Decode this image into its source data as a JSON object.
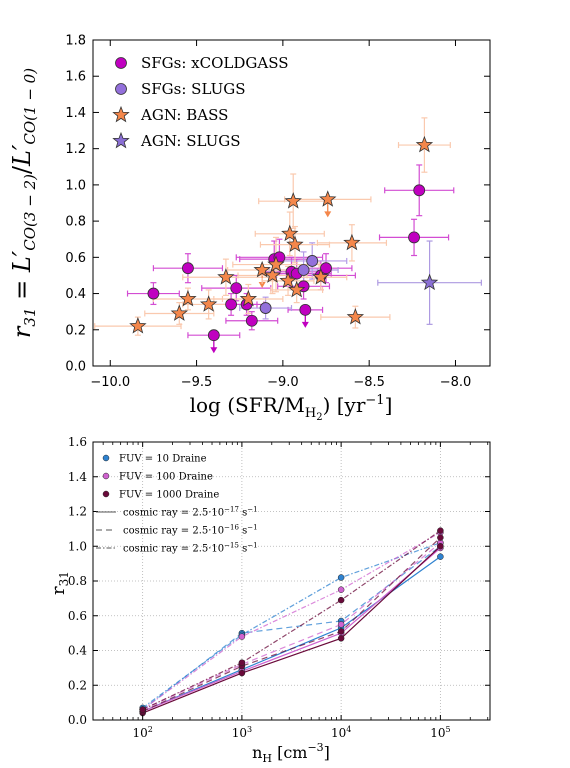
{
  "chart_data": [
    {
      "type": "scatter",
      "xlabel": "log (SFR/M_H2) [yr^-1]",
      "ylabel": "r31 = L'CO(3-2) / L'CO(1-0)",
      "xlim": [
        -10.1,
        -7.8
      ],
      "ylim": [
        0.0,
        1.8
      ],
      "x_ticks": [
        "−10.0",
        "−9.5",
        "−9.0",
        "−8.5",
        "−8.0"
      ],
      "y_ticks": [
        "0.0",
        "0.2",
        "0.4",
        "0.6",
        "0.8",
        "1.0",
        "1.2",
        "1.4",
        "1.6",
        "1.8"
      ],
      "legend_position": "top-left",
      "grid": false,
      "legend": [
        "SFGs: xCOLDGASS",
        "SFGs: SLUGS",
        "AGN: BASS",
        "AGN: SLUGS"
      ],
      "colors": {
        "xcoldgass": "#c000c0",
        "slugs_sfg": "#9370db",
        "bass": "#f4874b",
        "slugs_agn": "#8a6fd4"
      },
      "series": [
        {
          "name": "SFGs: xCOLDGASS",
          "marker": "circle",
          "points": [
            {
              "x": -9.75,
              "y": 0.4,
              "xerr": 0.15,
              "yerr": 0.06
            },
            {
              "x": -9.55,
              "y": 0.54,
              "xerr": 0.2,
              "yerr": 0.08
            },
            {
              "x": -9.4,
              "y": 0.17,
              "xerr": 0.15,
              "yerr": 0.05,
              "upper": true
            },
            {
              "x": -9.3,
              "y": 0.34,
              "xerr": 0.15,
              "yerr": 0.06
            },
            {
              "x": -9.27,
              "y": 0.43,
              "xerr": 0.2,
              "yerr": 0.07
            },
            {
              "x": -9.21,
              "y": 0.34,
              "xerr": 0.1,
              "yerr": 0.06
            },
            {
              "x": -9.18,
              "y": 0.25,
              "xerr": 0.15,
              "yerr": 0.05
            },
            {
              "x": -9.05,
              "y": 0.59,
              "xerr": 0.2,
              "yerr": 0.1
            },
            {
              "x": -9.02,
              "y": 0.6,
              "xerr": 0.25,
              "yerr": 0.1
            },
            {
              "x": -8.95,
              "y": 0.52,
              "xerr": 0.15,
              "yerr": 0.08
            },
            {
              "x": -8.92,
              "y": 0.51,
              "xerr": 0.2,
              "yerr": 0.08
            },
            {
              "x": -8.88,
              "y": 0.44,
              "xerr": 0.15,
              "yerr": 0.07
            },
            {
              "x": -8.87,
              "y": 0.31,
              "xerr": 0.1,
              "yerr": 0.05,
              "upper": true
            },
            {
              "x": -8.78,
              "y": 0.5,
              "xerr": 0.2,
              "yerr": 0.08
            },
            {
              "x": -8.75,
              "y": 0.54,
              "xerr": 0.15,
              "yerr": 0.08
            },
            {
              "x": -8.24,
              "y": 0.71,
              "xerr": 0.2,
              "yerr": 0.1
            },
            {
              "x": -8.21,
              "y": 0.97,
              "xerr": 0.2,
              "yerr": 0.14
            }
          ]
        },
        {
          "name": "SFGs: SLUGS",
          "marker": "circle",
          "points": [
            {
              "x": -9.1,
              "y": 0.32,
              "xerr": 0.15,
              "yerr": 0.06
            },
            {
              "x": -8.88,
              "y": 0.53,
              "xerr": 0.2,
              "yerr": 0.1
            },
            {
              "x": -8.83,
              "y": 0.58,
              "xerr": 0.2,
              "yerr": 0.1
            }
          ]
        },
        {
          "name": "AGN: BASS",
          "marker": "star",
          "points": [
            {
              "x": -9.84,
              "y": 0.22,
              "xerr": 0.25,
              "yerr": 0.05
            },
            {
              "x": -9.6,
              "y": 0.29,
              "xerr": 0.2,
              "yerr": 0.06
            },
            {
              "x": -9.55,
              "y": 0.37,
              "xerr": 0.2,
              "yerr": 0.06
            },
            {
              "x": -9.43,
              "y": 0.34,
              "xerr": 0.15,
              "yerr": 0.08
            },
            {
              "x": -9.33,
              "y": 0.49,
              "xerr": 0.25,
              "yerr": 0.1
            },
            {
              "x": -9.2,
              "y": 0.37,
              "xerr": 0.2,
              "yerr": 0.08
            },
            {
              "x": -9.12,
              "y": 0.53,
              "xerr": 0.2,
              "yerr": 0.15,
              "upper": true
            },
            {
              "x": -9.06,
              "y": 0.5,
              "xerr": 0.2,
              "yerr": 0.1
            },
            {
              "x": -9.04,
              "y": 0.56,
              "xerr": 0.25,
              "yerr": 0.15
            },
            {
              "x": -8.97,
              "y": 0.47,
              "xerr": 0.15,
              "yerr": 0.08
            },
            {
              "x": -8.96,
              "y": 0.73,
              "xerr": 0.2,
              "yerr": 0.12
            },
            {
              "x": -8.94,
              "y": 0.91,
              "xerr": 0.2,
              "yerr": 0.15
            },
            {
              "x": -8.93,
              "y": 0.67,
              "xerr": 0.2,
              "yerr": 0.1
            },
            {
              "x": -8.92,
              "y": 0.42,
              "xerr": 0.15,
              "yerr": 0.07
            },
            {
              "x": -8.74,
              "y": 0.92,
              "xerr": 0.25,
              "yerr": 0.15,
              "upper": true
            },
            {
              "x": -8.78,
              "y": 0.49,
              "xerr": 0.15,
              "yerr": 0.07
            },
            {
              "x": -8.6,
              "y": 0.68,
              "xerr": 0.2,
              "yerr": 0.1
            },
            {
              "x": -8.58,
              "y": 0.27,
              "xerr": 0.2,
              "yerr": 0.06
            },
            {
              "x": -8.18,
              "y": 1.22,
              "xerr": 0.15,
              "yerr": 0.15
            }
          ]
        },
        {
          "name": "AGN: SLUGS",
          "marker": "star",
          "points": [
            {
              "x": -8.15,
              "y": 0.46,
              "xerr": 0.3,
              "yerr": 0.23
            }
          ]
        }
      ]
    },
    {
      "type": "line",
      "xlabel": "n_H [cm^-3]",
      "ylabel": "r31",
      "xscale": "log",
      "xlim": [
        31.6,
        316228
      ],
      "ylim": [
        0.0,
        1.6
      ],
      "x": [
        100,
        1000,
        10000,
        100000
      ],
      "x_ticks": [
        "10^2",
        "10^3",
        "10^4",
        "10^5"
      ],
      "y_ticks": [
        "0.0",
        "0.2",
        "0.4",
        "0.6",
        "0.8",
        "1.0",
        "1.2",
        "1.4",
        "1.6"
      ],
      "grid": true,
      "legend_position": "top-left",
      "colors": {
        "fuv10": "#2e82d0",
        "fuv100": "#cf62cf",
        "fuv1000": "#6a0a3a"
      },
      "legend": {
        "fuv_mant": [
          "FUV = 10 Draine",
          "FUV = 100 Draine",
          "FUV = 1000 Draine"
        ],
        "cr_mant": [
          "cosmic ray = 2.5·10",
          "cosmic ray = 2.5·10",
          "cosmic ray = 2.5·10"
        ],
        "cr_exp": [
          "−17",
          "−16",
          "−15"
        ],
        "cr_unit": "s",
        "cr_unit_exp": "−1"
      },
      "series": [
        {
          "fuv": "10",
          "cr": "-17",
          "values": [
            0.05,
            0.29,
            0.53,
            0.94
          ]
        },
        {
          "fuv": "10",
          "cr": "-16",
          "values": [
            0.06,
            0.5,
            0.57,
            1.0
          ]
        },
        {
          "fuv": "10",
          "cr": "-15",
          "values": [
            0.07,
            0.49,
            0.82,
            1.02
          ]
        },
        {
          "fuv": "100",
          "cr": "-17",
          "values": [
            0.05,
            0.28,
            0.5,
            0.99
          ]
        },
        {
          "fuv": "100",
          "cr": "-16",
          "values": [
            0.06,
            0.32,
            0.55,
            1.02
          ]
        },
        {
          "fuv": "100",
          "cr": "-15",
          "values": [
            0.06,
            0.48,
            0.75,
            1.08
          ]
        },
        {
          "fuv": "1000",
          "cr": "-17",
          "values": [
            0.04,
            0.27,
            0.47,
            1.0
          ]
        },
        {
          "fuv": "1000",
          "cr": "-16",
          "values": [
            0.05,
            0.31,
            0.51,
            1.05
          ]
        },
        {
          "fuv": "1000",
          "cr": "-15",
          "values": [
            0.06,
            0.33,
            0.69,
            1.09
          ]
        }
      ]
    }
  ]
}
